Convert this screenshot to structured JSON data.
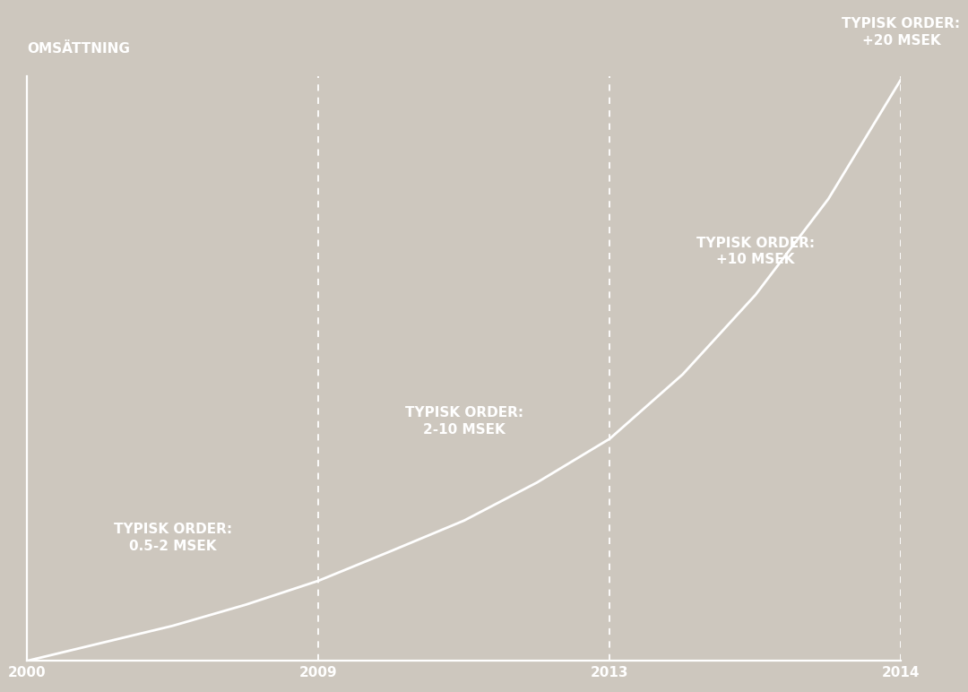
{
  "chart_data": {
    "type": "line",
    "y_label": "OMSÄTTNING",
    "categories": [
      "2000",
      null,
      null,
      null,
      "2009",
      null,
      null,
      null,
      "2013",
      null,
      null,
      null,
      "2014"
    ],
    "values": [
      0,
      3,
      6,
      9.6,
      13.7,
      18.8,
      24,
      30.5,
      38,
      49,
      62.6,
      79,
      99.5
    ],
    "color": "#ffffff",
    "ylim": [
      0,
      100
    ],
    "grid": true,
    "tick_labels": "x",
    "annotations": [
      "TYPISK ORDER:\n0.5-2 MSEK",
      "TYPISK ORDER:\n2-10 MSEK",
      "TYPISK ORDER:\n+10 MSEK",
      "TYPISK ORDER:\n+20 MSEK"
    ]
  }
}
